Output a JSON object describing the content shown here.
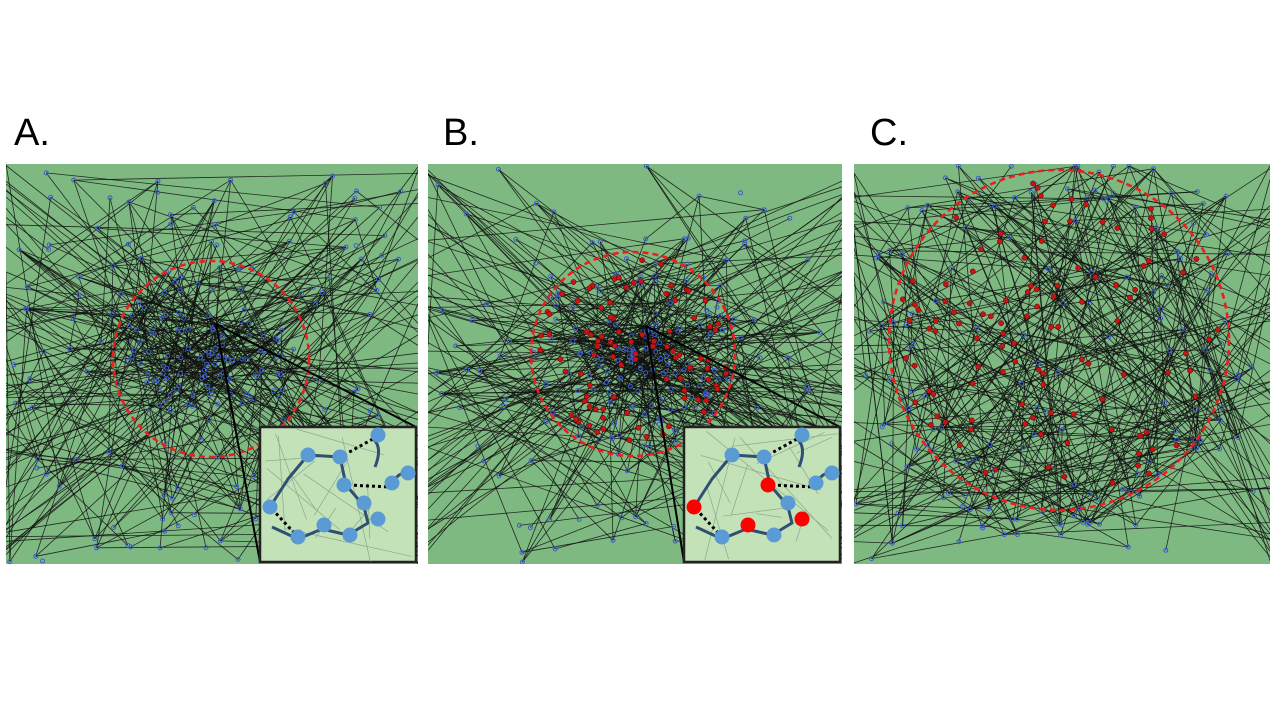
{
  "panels": [
    {
      "label": "A.",
      "has_inset": true,
      "inset_red_nodes": false,
      "core_red_nodes": false
    },
    {
      "label": "B.",
      "has_inset": true,
      "inset_red_nodes": true,
      "core_red_nodes": true
    },
    {
      "label": "C.",
      "has_inset": false,
      "inset_red_nodes": false,
      "core_red_nodes": true
    }
  ],
  "colors": {
    "background": "#7fb982",
    "inset_background": "#c4e2b8",
    "edge": "#111111",
    "node_blue": "#3a5bd0",
    "node_red": "#c81414",
    "inset_node_blue": "#5b9bd5",
    "inset_node_red": "#ff0000",
    "inset_chain": "#2f4f73",
    "boundary_dashed": "#e82020"
  }
}
